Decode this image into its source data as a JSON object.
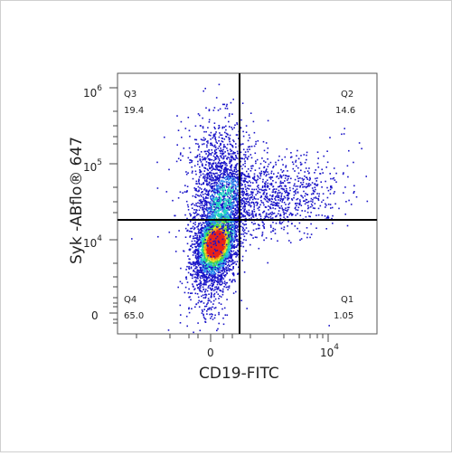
{
  "chart_data": {
    "type": "scatter",
    "title": "",
    "xlabel": "CD19-FITC",
    "ylabel": "Syk -ABflo® 647",
    "x_ticks": [
      {
        "label": "0",
        "value": 0
      },
      {
        "label": "10",
        "sup": "4",
        "value": 10000
      }
    ],
    "y_ticks": [
      {
        "label": "0",
        "value": 0
      },
      {
        "label": "10",
        "sup": "4",
        "value": 10000
      },
      {
        "label": "10",
        "sup": "5",
        "value": 100000
      },
      {
        "label": "10",
        "sup": "6",
        "value": 1000000
      }
    ],
    "gates": {
      "x": 1600,
      "y": 22000
    },
    "quadrants": [
      {
        "name": "Q1",
        "value": "1.05"
      },
      {
        "name": "Q2",
        "value": "14.6"
      },
      {
        "name": "Q3",
        "value": "19.4"
      },
      {
        "name": "Q4",
        "value": "65.0"
      }
    ],
    "grid": false,
    "legend": "none",
    "density_colors": [
      "#1a14c8",
      "#2f8ef0",
      "#22d7c0",
      "#3fd14a",
      "#e8e62a",
      "#f59a1c",
      "#e8221a"
    ]
  }
}
